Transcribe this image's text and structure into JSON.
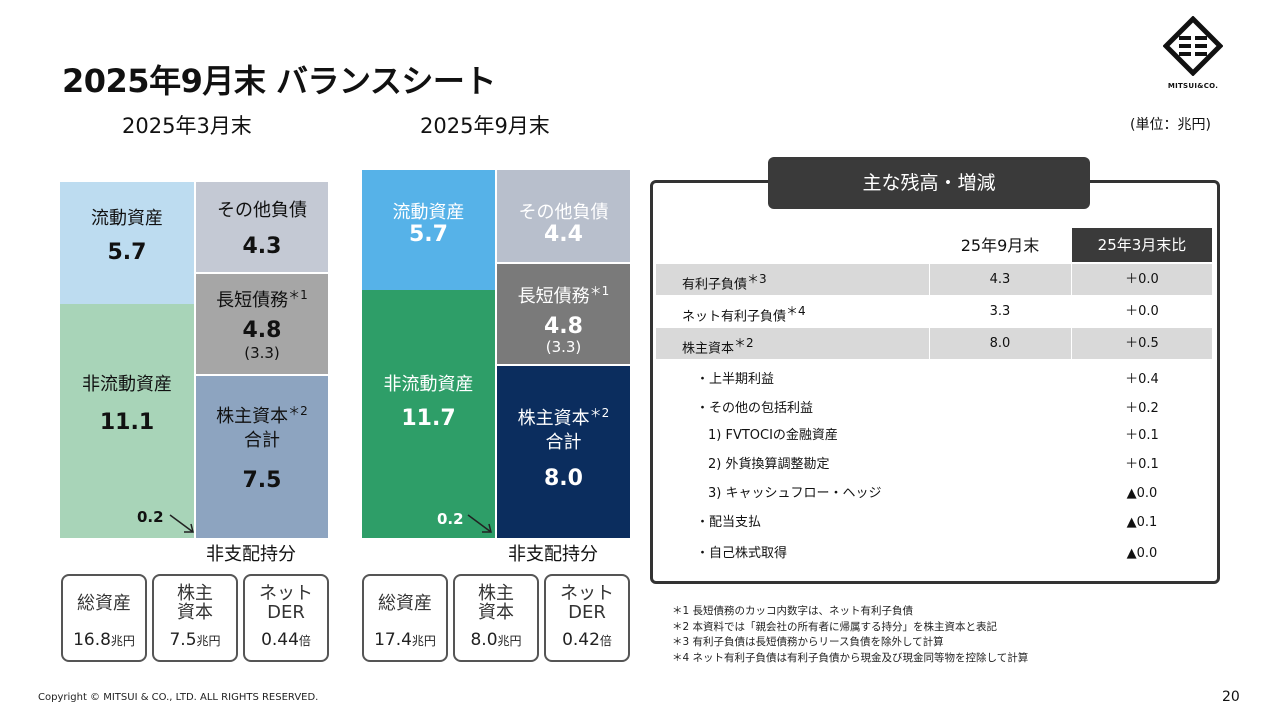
{
  "page": {
    "title": "2025年9月末 バランスシート",
    "unit": "(単位：兆円)",
    "copyright": "Copyright © MITSUI & CO., LTD. ALL RIGHTS RESERVED.",
    "page_number": "20",
    "logo_text": "MITSUI&CO."
  },
  "mar": {
    "heading": "2025年3月末",
    "current_assets": {
      "label": "流動資産",
      "value": "5.7"
    },
    "other_liab": {
      "label": "その他負債",
      "value": "4.3"
    },
    "debt": {
      "label": "長短債務",
      "mark": "＊1",
      "value": "4.8",
      "sub": "(3.3)"
    },
    "non_current": {
      "label": "非流動資産",
      "value": "11.1"
    },
    "equity": {
      "label": "株主資本",
      "mark": "＊2",
      "label2": "合計",
      "value": "7.5"
    },
    "nci": {
      "value": "0.2",
      "label": "非支配持分"
    },
    "kpis": [
      {
        "label": "総資産",
        "value": "16.8",
        "unit": "兆円"
      },
      {
        "label": "株主資本",
        "value": "7.5",
        "unit": "兆円"
      },
      {
        "label": "ネットDER",
        "value": "0.44",
        "unit": "倍"
      }
    ]
  },
  "sep": {
    "heading": "2025年9月末",
    "current_assets": {
      "label": "流動資産",
      "value": "5.7"
    },
    "other_liab": {
      "label": "その他負債",
      "value": "4.4"
    },
    "debt": {
      "label": "長短債務",
      "mark": "＊1",
      "value": "4.8",
      "sub": "(3.3)"
    },
    "non_current": {
      "label": "非流動資産",
      "value": "11.7"
    },
    "equity": {
      "label": "株主資本",
      "mark": "＊2",
      "label2": "合計",
      "value": "8.0"
    },
    "nci": {
      "value": "0.2",
      "label": "非支配持分"
    },
    "kpis": [
      {
        "label": "総資産",
        "value": "17.4",
        "unit": "兆円"
      },
      {
        "label": "株主資本",
        "value": "8.0",
        "unit": "兆円"
      },
      {
        "label": "ネットDER",
        "value": "0.42",
        "unit": "倍"
      }
    ]
  },
  "table": {
    "title": "主な残高・増減",
    "col1": "25年9月末",
    "col2": "25年3月末比",
    "rows": [
      {
        "label": "有利子負債",
        "mark": "＊3",
        "value": "4.3",
        "change": "＋0.0"
      },
      {
        "label": "ネット有利子負債",
        "mark": "＊4",
        "value": "3.3",
        "change": "＋0.0"
      },
      {
        "label": "株主資本",
        "mark": "＊2",
        "value": "8.0",
        "change": "＋0.5"
      }
    ],
    "subrows": [
      {
        "label": "・上半期利益",
        "change": "＋0.4"
      },
      {
        "label": "・その他の包括利益",
        "change": "＋0.2"
      },
      {
        "label": "1) FVTOCIの金融資産",
        "change": "＋0.1"
      },
      {
        "label": "2) 外貨換算調整勘定",
        "change": "＋0.1"
      },
      {
        "label": "3) キャッシュフロー・ヘッジ",
        "change": "▲0.0"
      },
      {
        "label": "・配当支払",
        "change": "▲0.1"
      },
      {
        "label": "・自己株式取得",
        "change": "▲0.0"
      }
    ]
  },
  "notes": [
    "＊1 長短債務のカッコ内数字は、ネット有利子負債",
    "＊2 本資料では「親会社の所有者に帰属する持分」を株主資本と表記",
    "＊3 有利子負債は長短債務からリース負債を除外して計算",
    "＊4 ネット有利子負債は有利子負債から現金及び現金同等物を控除して計算"
  ],
  "colors": {
    "mar_current": "#bddcf0",
    "mar_noncurrent": "#a8d4b8",
    "mar_other": "#c4c9d4",
    "mar_debt": "#a6a6a6",
    "mar_equity": "#8da4c0",
    "sep_current": "#56b2e8",
    "sep_noncurrent": "#2e9e68",
    "sep_other": "#b8bfcc",
    "sep_debt": "#7a7a7a",
    "sep_equity": "#0b2d5e"
  }
}
